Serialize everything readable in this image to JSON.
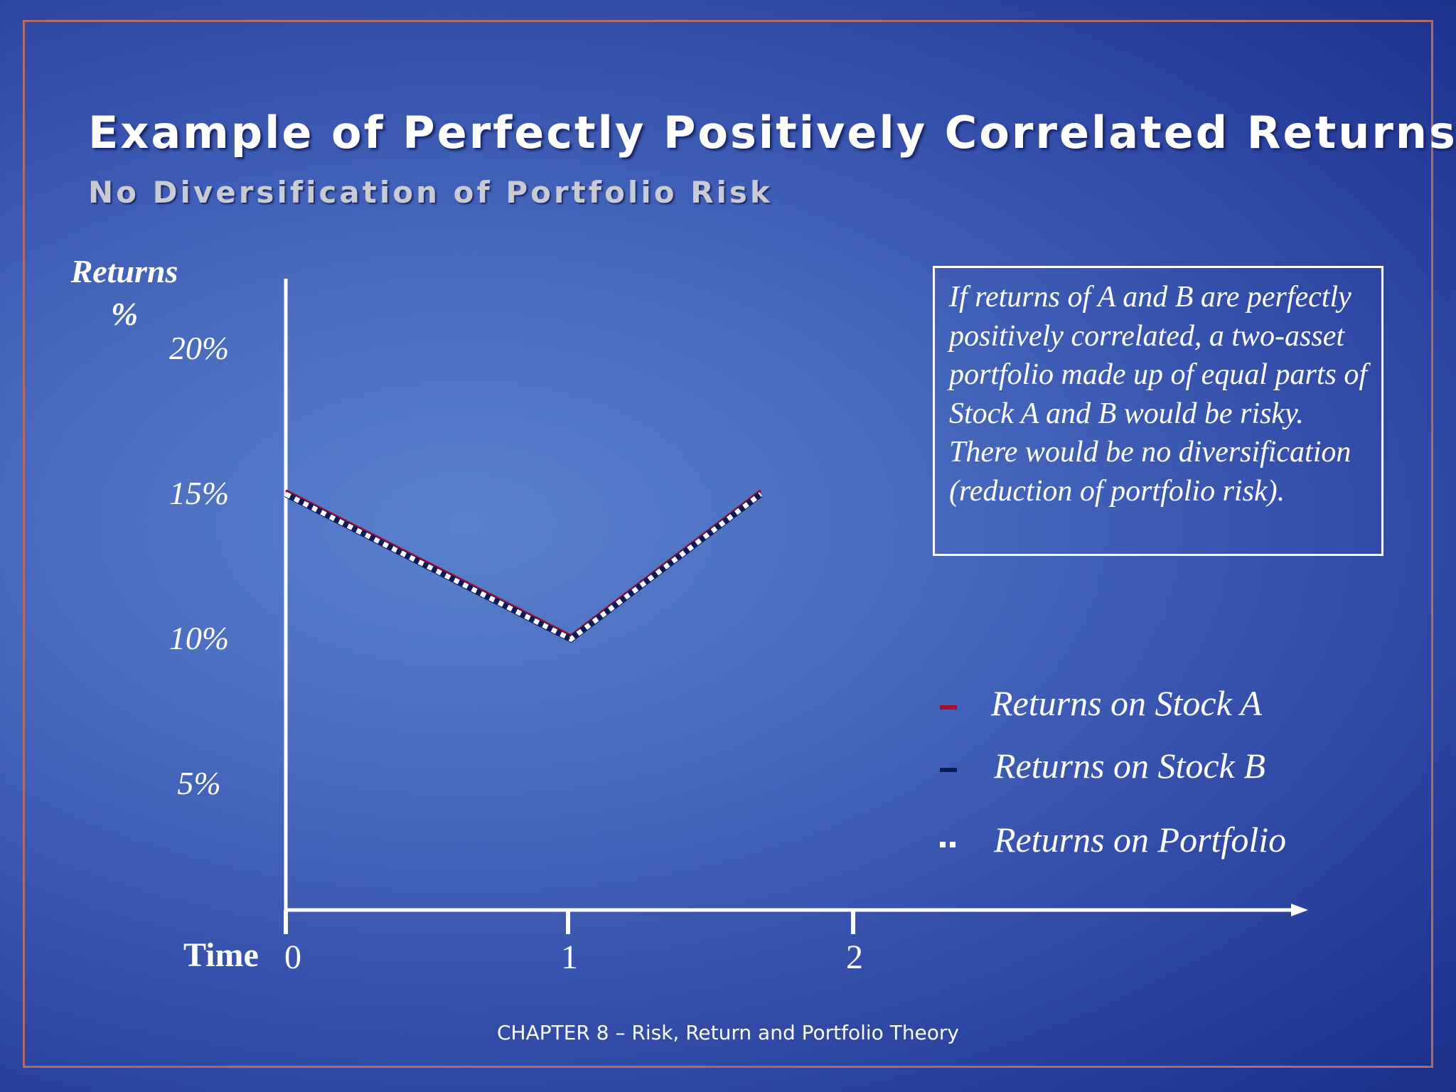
{
  "slide": {
    "title": "Example of Perfectly Positively Correlated Returns",
    "subtitle": "No Diversification of Portfolio Risk",
    "footer": "CHAPTER 8 – Risk, Return and Portfolio Theory",
    "note": "If returns of A and B are perfectly positively correlated, a two-asset portfolio made up of equal parts of Stock A and B would be risky.  There would be no diversification (reduction of portfolio risk)."
  },
  "colors": {
    "stock_a": "#a8102a",
    "stock_b": "#0c1a5a",
    "portfolio": "#ffffff",
    "axis": "#ffffff"
  },
  "chart_data": {
    "type": "line",
    "ylabel_line1": "Returns",
    "ylabel_line2": "%",
    "xlabel": "Time",
    "x": [
      0,
      1,
      2
    ],
    "x_tick_labels": [
      "0",
      "1",
      "2"
    ],
    "y_tick_values": [
      20,
      15,
      10,
      5
    ],
    "y_tick_labels": [
      "20%",
      "15%",
      "10%",
      "5%"
    ],
    "series": [
      {
        "name": "Returns on Stock A",
        "key": "stock_a",
        "values": [
          15,
          10,
          15
        ]
      },
      {
        "name": "Returns on Stock B",
        "key": "stock_b",
        "values": [
          15,
          10,
          15
        ]
      },
      {
        "name": "Returns on Portfolio",
        "key": "portfolio",
        "values": [
          15,
          10,
          15
        ]
      }
    ],
    "legend_position": "right",
    "grid": false
  }
}
